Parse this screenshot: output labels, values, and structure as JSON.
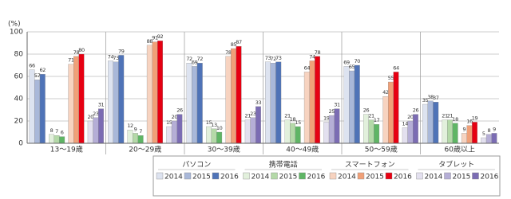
{
  "chart_data": {
    "type": "bar",
    "y_label": "(%)",
    "categories": [
      "13～19歳",
      "20～29歳",
      "30～39歳",
      "40～49歳",
      "50～59歳",
      "60歳以上"
    ],
    "ylim": [
      0,
      100
    ],
    "yticks": [
      0,
      20,
      40,
      60,
      80,
      100
    ],
    "grid": true,
    "groups": [
      {
        "name": "パソコン",
        "series": [
          {
            "name": "2014",
            "color": "#dde3f0",
            "values": [
              66,
              74,
              72,
              73,
              69,
              35
            ]
          },
          {
            "name": "2015",
            "color": "#a9b8d9",
            "values": [
              57,
              73,
              69,
              72,
              65,
              38
            ]
          },
          {
            "name": "2016",
            "color": "#4f73b7",
            "values": [
              62,
              79,
              72,
              73,
              70,
              37
            ]
          }
        ]
      },
      {
        "name": "携帯電話",
        "series": [
          {
            "name": "2014",
            "color": "#e2f0dc",
            "values": [
              8,
              12,
              15,
              21,
              26,
              21
            ]
          },
          {
            "name": "2015",
            "color": "#b4d9a8",
            "values": [
              7,
              9,
              13,
              18,
              21,
              21
            ]
          },
          {
            "name": "2016",
            "color": "#5fb565",
            "values": [
              6,
              7,
              10,
              15,
              17,
              18
            ]
          }
        ]
      },
      {
        "name": "スマートフォン",
        "series": [
          {
            "name": "2014",
            "color": "#f7d3c0",
            "values": [
              71,
              88,
              78,
              64,
              42,
              9
            ]
          },
          {
            "name": "2015",
            "color": "#f0a078",
            "values": [
              78,
              91,
              85,
              74,
              55,
              16
            ]
          },
          {
            "name": "2016",
            "color": "#e60012",
            "values": [
              80,
              92,
              87,
              78,
              64,
              19
            ]
          }
        ]
      },
      {
        "name": "タブレット",
        "series": [
          {
            "name": "2014",
            "color": "#e3e0ef",
            "values": [
              20,
              15,
              21,
              19,
              14,
              5
            ]
          },
          {
            "name": "2015",
            "color": "#b5aed6",
            "values": [
              23,
              20,
              23,
              25,
              20,
              8
            ]
          },
          {
            "name": "2016",
            "color": "#7b6cb3",
            "values": [
              31,
              26,
              33,
              31,
              26,
              9
            ]
          }
        ]
      }
    ]
  }
}
